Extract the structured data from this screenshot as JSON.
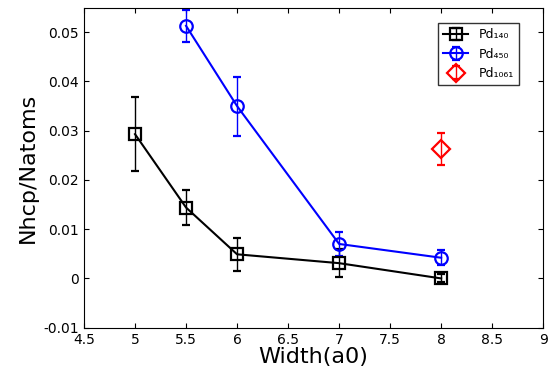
{
  "chart_data": {
    "type": "line",
    "x_label": "Width(a0)",
    "y_label": "Nhcp/Natoms",
    "xlim": [
      4.5,
      9
    ],
    "xticks": [
      4.5,
      5,
      5.5,
      6,
      6.5,
      7,
      7.5,
      8,
      8.5,
      9
    ],
    "ylim": [
      -0.01,
      0.055
    ],
    "yticks": [
      -0.01,
      0,
      0.01,
      0.02,
      0.03,
      0.04,
      0.05
    ],
    "legend": "upper right",
    "grid": false,
    "series": [
      {
        "name": "Pd₁₄₀",
        "color": "#000000",
        "marker": "square",
        "line_style": "solid",
        "x": [
          5,
          5.5,
          6,
          7,
          8
        ],
        "values": [
          0.0293,
          0.0144,
          0.0049,
          0.0031,
          0.0
        ],
        "error": [
          0.0075,
          0.0035,
          0.0033,
          0.0028,
          0.0008
        ]
      },
      {
        "name": "Pd₄₅₀",
        "color": "#0000ff",
        "marker": "circle",
        "line_style": "solid",
        "x": [
          5.5,
          6,
          7,
          8
        ],
        "values": [
          0.0513,
          0.035,
          0.007,
          0.0042
        ],
        "error": [
          0.0033,
          0.006,
          0.0025,
          0.0015
        ]
      },
      {
        "name": "Pd₁₀₆₁",
        "color": "#ff0000",
        "marker": "diamond",
        "line_style": "none",
        "x": [
          8
        ],
        "values": [
          0.0263
        ],
        "error": [
          0.0033
        ]
      }
    ]
  }
}
